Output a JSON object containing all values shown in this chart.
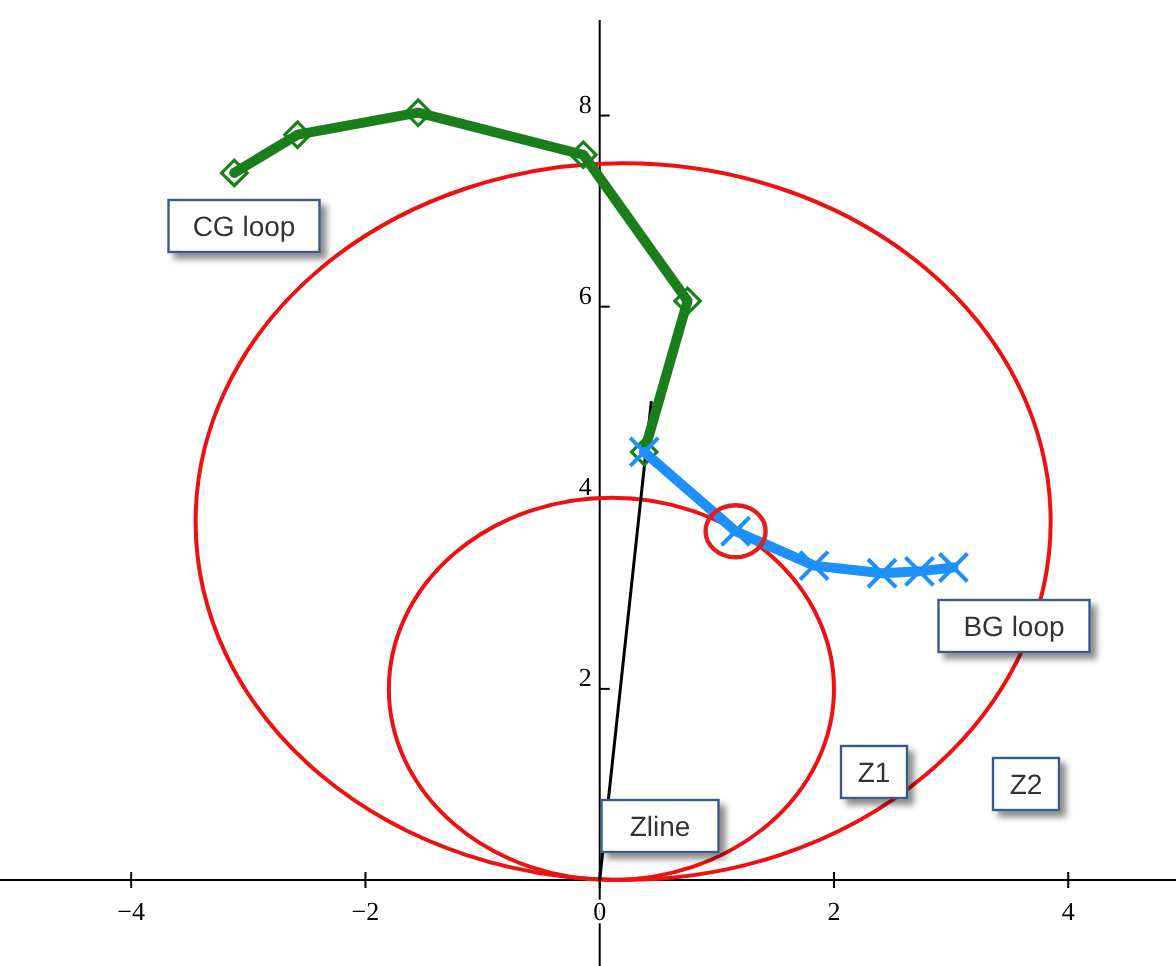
{
  "chart_data": {
    "type": "line",
    "xlim": [
      -5.12,
      4.92
    ],
    "ylim": [
      -0.9,
      9.0
    ],
    "xticks": [
      {
        "value": -4,
        "label": "−4"
      },
      {
        "value": -2,
        "label": "−2"
      },
      0,
      2,
      4
    ],
    "yticks": [
      2,
      4,
      6,
      8
    ],
    "grid": false,
    "annotations": [
      "Z1",
      "Z2"
    ],
    "series": [
      {
        "name": "Zline",
        "color": "#000000",
        "marker": "none",
        "x": [
          0,
          0.44
        ],
        "values": [
          0,
          5.0
        ]
      },
      {
        "name": "CG loop",
        "color": "#1a7f1a",
        "marker": "diamond",
        "x": [
          -3.12,
          -2.58,
          -1.55,
          -0.14,
          0.75,
          0.38
        ],
        "values": [
          7.4,
          7.8,
          8.03,
          7.59,
          6.06,
          4.48
        ]
      },
      {
        "name": "BG loop",
        "color": "#1e8fff",
        "marker": "cross",
        "x": [
          0.38,
          1.16,
          1.83,
          2.41,
          2.73,
          3.02
        ],
        "values": [
          4.48,
          3.65,
          3.29,
          3.21,
          3.23,
          3.27
        ]
      }
    ]
  }
}
